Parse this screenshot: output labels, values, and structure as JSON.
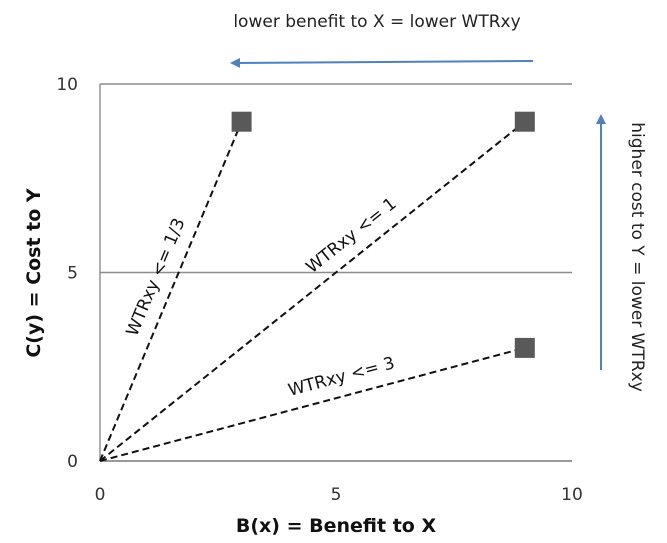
{
  "chart_data": {
    "type": "line",
    "xlabel": "B(x) = Benefit to X",
    "ylabel": "C(y) = Cost to Y",
    "xlim": [
      0,
      10
    ],
    "ylim": [
      0,
      10
    ],
    "x_ticks": [
      "0",
      "5",
      "10"
    ],
    "y_ticks": [
      "0",
      "5",
      "10"
    ],
    "grid": "horizontal",
    "series": [
      {
        "label": "WTRxy <= 1/3",
        "points": [
          [
            0,
            0
          ],
          [
            3,
            9
          ]
        ]
      },
      {
        "label": "WTRxy <= 1",
        "points": [
          [
            0,
            0
          ],
          [
            9,
            9
          ]
        ]
      },
      {
        "label": "WTRxy <= 3",
        "points": [
          [
            0,
            0
          ],
          [
            9,
            3
          ]
        ]
      }
    ],
    "annotations": {
      "top": "lower benefit to X = lower WTRxy",
      "right": "higher cost to Y = lower WTRxy"
    },
    "colors": {
      "line": "#111111",
      "marker": "#595959",
      "arrow": "#4F81BD",
      "grid": "#8C8C8C"
    }
  }
}
